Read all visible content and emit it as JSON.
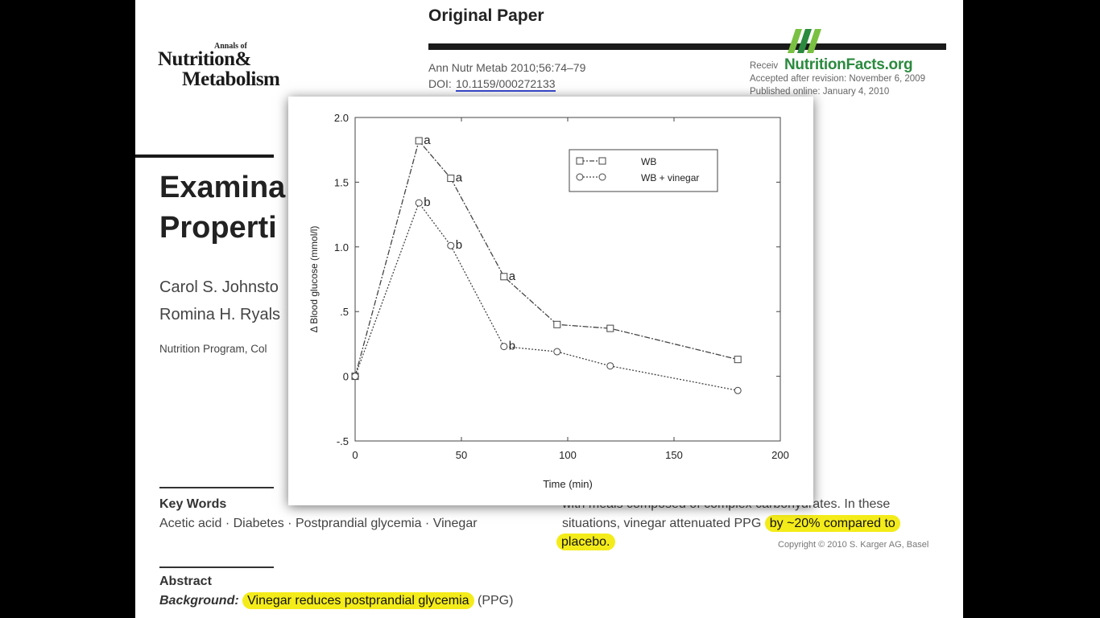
{
  "journal": {
    "annals_of": "Annals of",
    "line1": "Nutrition&",
    "line2": "Metabolism"
  },
  "header": {
    "original_paper": "Original Paper",
    "citation": "Ann Nutr Metab 2010;56:74–79",
    "doi_label": "DOI:",
    "doi_value": "10.1159/000272133",
    "received": "Receiv",
    "accepted": "Accepted after revision: November 6, 2009",
    "published": "Published online: January 4, 2010"
  },
  "watermark": {
    "text": "NutritionFacts.org",
    "logo_glyph": "N",
    "color": "#2b8a3e"
  },
  "article": {
    "title_line1": "Examina",
    "title_line2": "Properti",
    "author_line1": "Carol S. Johnsto",
    "author_line2": "Romina H. Ryals",
    "affiliation": "Nutrition Program, Col"
  },
  "keywords": {
    "heading": "Key Words",
    "list": "Acetic acid · Diabetes · Postprandial glycemia · Vinegar"
  },
  "abstract": {
    "heading": "Abstract",
    "background_label": "Background:",
    "background_highlight": "Vinegar reduces postprandial glycemia",
    "background_rest": "(PPG)"
  },
  "right_column": {
    "line1": "with meals composed of complex carbohydrates. In these",
    "line2_plain": "situations, vinegar attenuated PPG",
    "line2_highlight": "by ~20% compared to",
    "line3_highlight": "placebo.",
    "copyright": "Copyright © 2010 S. Karger AG, Basel"
  },
  "colors": {
    "highlight": "#f4ec1a",
    "doi_underline": "#3a4ad0"
  },
  "chart_data": {
    "type": "line",
    "xlabel": "Time (min)",
    "ylabel": "Δ Blood glucose (mmol/l)",
    "xlim": [
      0,
      200
    ],
    "ylim": [
      -0.5,
      2.0
    ],
    "x_ticks": [
      0,
      50,
      100,
      150,
      200
    ],
    "y_ticks": [
      -0.5,
      0,
      0.5,
      1.0,
      1.5,
      2.0
    ],
    "x_tick_labels": [
      "0",
      "50",
      "100",
      "150",
      "200"
    ],
    "y_tick_labels": [
      "-.5",
      "0",
      ".5",
      "1.0",
      "1.5",
      "2.0"
    ],
    "grid": false,
    "legend_position": "top-right",
    "series": [
      {
        "name": "WB",
        "marker": "square",
        "dash": "dash-dot",
        "x": [
          0,
          30,
          45,
          70,
          95,
          120,
          180
        ],
        "y": [
          0,
          1.82,
          1.53,
          0.77,
          0.4,
          0.37,
          0.13
        ],
        "labels": [
          "",
          "a",
          "a",
          "a",
          "",
          "",
          ""
        ]
      },
      {
        "name": "WB + vinegar",
        "marker": "circle",
        "dash": "dotted",
        "x": [
          0,
          30,
          45,
          70,
          95,
          120,
          180
        ],
        "y": [
          0,
          1.34,
          1.01,
          0.23,
          0.19,
          0.08,
          -0.11
        ],
        "labels": [
          "",
          "b",
          "b",
          "b",
          "",
          "",
          ""
        ]
      }
    ]
  }
}
